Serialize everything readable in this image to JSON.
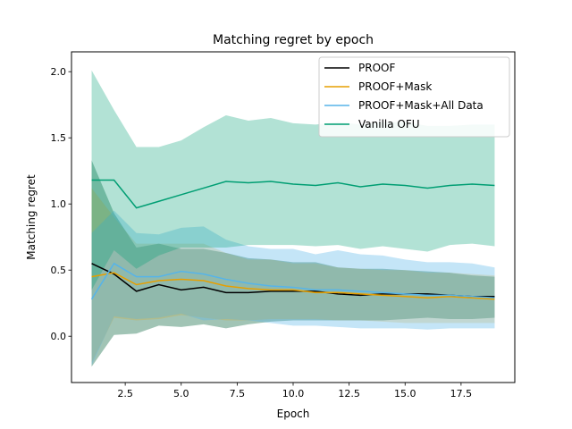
{
  "chart_data": {
    "type": "line",
    "title": "Matching regret by epoch",
    "xlabel": "Epoch",
    "ylabel": "Matching regret",
    "xlim": [
      0.1,
      19.9
    ],
    "ylim": [
      -0.35,
      2.15
    ],
    "xticks": [
      2.5,
      5.0,
      7.5,
      10.0,
      12.5,
      15.0,
      17.5
    ],
    "xtick_labels": [
      "2.5",
      "5.0",
      "7.5",
      "10.0",
      "12.5",
      "15.0",
      "17.5"
    ],
    "yticks": [
      0.0,
      0.5,
      1.0,
      1.5,
      2.0
    ],
    "ytick_labels": [
      "0.0",
      "0.5",
      "1.0",
      "1.5",
      "2.0"
    ],
    "grid": false,
    "legend_position": "top-right",
    "x": [
      1,
      2,
      3,
      4,
      5,
      6,
      7,
      8,
      9,
      10,
      11,
      12,
      13,
      14,
      15,
      16,
      17,
      18,
      19
    ],
    "series": [
      {
        "name": "PROOF",
        "color": "#000000",
        "band_color": "#2e7d5b",
        "band_opacity": 0.45,
        "values": [
          0.55,
          0.47,
          0.34,
          0.39,
          0.35,
          0.37,
          0.33,
          0.33,
          0.34,
          0.34,
          0.34,
          0.32,
          0.31,
          0.32,
          0.32,
          0.32,
          0.31,
          0.3,
          0.3
        ],
        "upper": [
          1.33,
          0.93,
          0.67,
          0.7,
          0.66,
          0.66,
          0.63,
          0.59,
          0.58,
          0.56,
          0.56,
          0.52,
          0.51,
          0.51,
          0.5,
          0.49,
          0.48,
          0.46,
          0.45
        ],
        "lower": [
          -0.23,
          0.01,
          0.02,
          0.08,
          0.07,
          0.09,
          0.06,
          0.09,
          0.11,
          0.12,
          0.12,
          0.12,
          0.12,
          0.12,
          0.13,
          0.14,
          0.13,
          0.13,
          0.14
        ]
      },
      {
        "name": "PROOF+Mask",
        "color": "#e69f00",
        "band_color": "#e69f00",
        "band_opacity": 0.22,
        "values": [
          0.45,
          0.48,
          0.39,
          0.42,
          0.43,
          0.42,
          0.38,
          0.36,
          0.35,
          0.35,
          0.33,
          0.33,
          0.32,
          0.31,
          0.3,
          0.29,
          0.3,
          0.29,
          0.28
        ],
        "upper": [
          1.12,
          0.9,
          0.7,
          0.7,
          0.7,
          0.7,
          0.63,
          0.58,
          0.58,
          0.55,
          0.55,
          0.52,
          0.51,
          0.5,
          0.5,
          0.48,
          0.48,
          0.47,
          0.46
        ],
        "lower": [
          -0.2,
          0.14,
          0.12,
          0.13,
          0.16,
          0.14,
          0.12,
          0.12,
          0.13,
          0.13,
          0.13,
          0.12,
          0.12,
          0.11,
          0.1,
          0.1,
          0.1,
          0.1,
          0.1
        ]
      },
      {
        "name": "PROOF+Mask+All Data",
        "color": "#56b4e9",
        "band_color": "#56b4e9",
        "band_opacity": 0.35,
        "values": [
          0.28,
          0.55,
          0.45,
          0.45,
          0.49,
          0.47,
          0.43,
          0.4,
          0.38,
          0.37,
          0.35,
          0.35,
          0.34,
          0.33,
          0.32,
          0.31,
          0.31,
          0.3,
          0.29
        ],
        "upper": [
          0.78,
          0.95,
          0.78,
          0.77,
          0.82,
          0.83,
          0.73,
          0.68,
          0.66,
          0.66,
          0.62,
          0.65,
          0.62,
          0.61,
          0.58,
          0.56,
          0.56,
          0.55,
          0.52
        ],
        "lower": [
          -0.22,
          0.15,
          0.13,
          0.14,
          0.17,
          0.12,
          0.13,
          0.12,
          0.1,
          0.08,
          0.08,
          0.07,
          0.06,
          0.06,
          0.06,
          0.05,
          0.06,
          0.06,
          0.06
        ]
      },
      {
        "name": "Vanilla OFU",
        "color": "#009e73",
        "band_color": "#009e73",
        "band_opacity": 0.3,
        "values": [
          1.18,
          1.18,
          0.97,
          1.02,
          1.07,
          1.12,
          1.17,
          1.16,
          1.17,
          1.15,
          1.14,
          1.16,
          1.13,
          1.15,
          1.14,
          1.12,
          1.14,
          1.15,
          1.14
        ],
        "upper": [
          2.01,
          1.71,
          1.43,
          1.43,
          1.48,
          1.58,
          1.67,
          1.63,
          1.65,
          1.61,
          1.6,
          1.62,
          1.6,
          1.62,
          1.62,
          1.59,
          1.59,
          1.6,
          1.6
        ],
        "lower": [
          0.35,
          0.65,
          0.51,
          0.61,
          0.67,
          0.67,
          0.67,
          0.69,
          0.69,
          0.69,
          0.68,
          0.69,
          0.66,
          0.68,
          0.66,
          0.64,
          0.69,
          0.7,
          0.68
        ]
      }
    ]
  }
}
